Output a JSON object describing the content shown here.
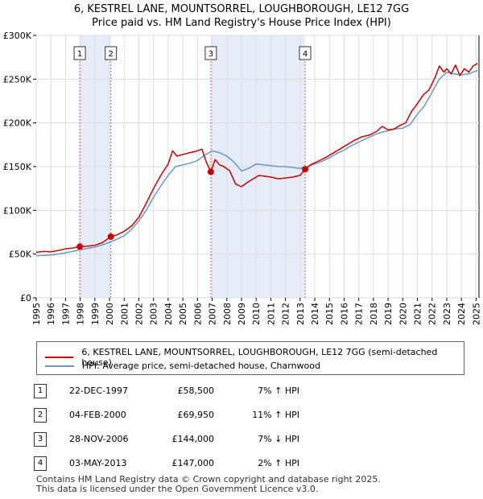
{
  "chart_data": {
    "type": "line",
    "title_lines": [
      "6, KESTREL LANE, MOUNTSORREL, LOUGHBOROUGH, LE12 7GG",
      "Price paid vs. HM Land Registry's House Price Index (HPI)"
    ],
    "xlim": [
      1995.0,
      2025.2
    ],
    "ylim": [
      0,
      300000
    ],
    "x_ticks": [
      "1995",
      "1996",
      "1997",
      "1998",
      "1999",
      "2000",
      "2001",
      "2002",
      "2003",
      "2004",
      "2005",
      "2006",
      "2007",
      "2008",
      "2009",
      "2010",
      "2011",
      "2012",
      "2013",
      "2014",
      "2015",
      "2016",
      "2017",
      "2018",
      "2019",
      "2020",
      "2021",
      "2022",
      "2023",
      "2024",
      "2025"
    ],
    "y_ticks": [
      {
        "value": 0,
        "label": "£0"
      },
      {
        "value": 50000,
        "label": "£50K"
      },
      {
        "value": 100000,
        "label": "£100K"
      },
      {
        "value": 150000,
        "label": "£150K"
      },
      {
        "value": 200000,
        "label": "£200K"
      },
      {
        "value": 250000,
        "label": "£250K"
      },
      {
        "value": 300000,
        "label": "£300K"
      }
    ],
    "series": [
      {
        "name": "6, KESTREL LANE, MOUNTSORREL, LOUGHBOROUGH, LE12 7GG (semi-detached house)",
        "color": "#cc0000",
        "x": [
          1995.0,
          1995.5,
          1996.0,
          1996.5,
          1997.0,
          1997.5,
          1997.97,
          1998.5,
          1999.0,
          1999.5,
          2000.09,
          2000.5,
          2001.0,
          2001.5,
          2002.0,
          2002.5,
          2003.0,
          2003.5,
          2004.0,
          2004.3,
          2004.6,
          2005.0,
          2005.5,
          2006.0,
          2006.3,
          2006.6,
          2006.91,
          2007.2,
          2007.5,
          2007.8,
          2008.2,
          2008.6,
          2009.0,
          2009.4,
          2009.8,
          2010.2,
          2010.6,
          2011.0,
          2011.5,
          2012.0,
          2012.5,
          2013.0,
          2013.34,
          2013.7,
          2014.2,
          2014.7,
          2015.2,
          2015.7,
          2016.2,
          2016.7,
          2017.2,
          2017.7,
          2018.2,
          2018.6,
          2019.0,
          2019.4,
          2019.8,
          2020.2,
          2020.6,
          2021.0,
          2021.4,
          2021.8,
          2022.2,
          2022.5,
          2022.8,
          2023.0,
          2023.3,
          2023.6,
          2023.9,
          2024.2,
          2024.5,
          2024.8,
          2025.1
        ],
        "values": [
          52000,
          53000,
          52500,
          54000,
          56000,
          57000,
          58500,
          59000,
          60000,
          63000,
          69950,
          72000,
          76000,
          82000,
          92000,
          108000,
          125000,
          140000,
          153000,
          168000,
          162000,
          164000,
          166000,
          168000,
          170000,
          155000,
          144000,
          158000,
          152000,
          150000,
          145000,
          130000,
          127000,
          132000,
          136000,
          140000,
          139000,
          138000,
          136000,
          137000,
          138000,
          140000,
          147000,
          152000,
          156000,
          160000,
          165000,
          170000,
          175000,
          180000,
          184000,
          186000,
          190000,
          196000,
          192000,
          193000,
          197000,
          200000,
          213000,
          222000,
          232000,
          238000,
          252000,
          265000,
          258000,
          262000,
          256000,
          266000,
          254000,
          262000,
          258000,
          265000,
          268000
        ]
      },
      {
        "name": "HPI: Average price, semi-detached house, Charnwood",
        "color": "#6699cc",
        "x": [
          1995.0,
          1995.5,
          1996.0,
          1996.5,
          1997.0,
          1997.5,
          1998.0,
          1998.5,
          1999.0,
          1999.5,
          2000.0,
          2000.5,
          2001.0,
          2001.5,
          2002.0,
          2002.5,
          2003.0,
          2003.5,
          2004.0,
          2004.5,
          2005.0,
          2005.5,
          2006.0,
          2006.5,
          2007.0,
          2007.5,
          2008.0,
          2008.5,
          2009.0,
          2009.5,
          2010.0,
          2010.5,
          2011.0,
          2011.5,
          2012.0,
          2012.5,
          2013.0,
          2013.5,
          2014.0,
          2014.5,
          2015.0,
          2015.5,
          2016.0,
          2016.5,
          2017.0,
          2017.5,
          2018.0,
          2018.5,
          2019.0,
          2019.5,
          2020.0,
          2020.5,
          2021.0,
          2021.5,
          2022.0,
          2022.5,
          2023.0,
          2023.5,
          2024.0,
          2024.5,
          2025.1
        ],
        "values": [
          48000,
          48500,
          49000,
          50000,
          51500,
          53000,
          55000,
          56500,
          58000,
          60500,
          63500,
          67000,
          71000,
          78000,
          88000,
          100000,
          115000,
          128000,
          140000,
          150000,
          152000,
          154000,
          157000,
          163000,
          168000,
          166000,
          162000,
          155000,
          145000,
          148000,
          153000,
          152000,
          151000,
          150000,
          150000,
          149000,
          148000,
          150000,
          153000,
          156000,
          160000,
          165000,
          169000,
          174000,
          178000,
          182000,
          186000,
          189000,
          191000,
          193000,
          194000,
          198000,
          210000,
          220000,
          235000,
          250000,
          258000,
          256000,
          255000,
          256000,
          260000
        ]
      }
    ],
    "transactions": [
      {
        "id": "1",
        "date": "22-DEC-1997",
        "x": 1997.97,
        "price": 58500,
        "price_label": "£58,500",
        "hpi_change": "7% ↑ HPI"
      },
      {
        "id": "2",
        "date": "04-FEB-2000",
        "x": 2000.09,
        "price": 69950,
        "price_label": "£69,950",
        "hpi_change": "11% ↑ HPI"
      },
      {
        "id": "3",
        "date": "28-NOV-2006",
        "x": 2006.91,
        "price": 144000,
        "price_label": "£144,000",
        "hpi_change": "7% ↓ HPI"
      },
      {
        "id": "4",
        "date": "03-MAY-2013",
        "x": 2013.34,
        "price": 147000,
        "price_label": "£147,000",
        "hpi_change": "2% ↑ HPI"
      }
    ],
    "shaded_ranges": [
      [
        1997.97,
        2000.09
      ],
      [
        2006.91,
        2013.34
      ]
    ],
    "grid": true,
    "shade_color": "#e6ecf8",
    "grid_color": "#dddddd",
    "marker_color": "#cc0000",
    "vline_color": "#dd5555"
  },
  "legend": {
    "property_label": "6, KESTREL LANE, MOUNTSORREL, LOUGHBOROUGH, LE12 7GG (semi-detached house)",
    "hpi_label": "HPI: Average price, semi-detached house, Charnwood"
  },
  "footer": {
    "line1": "Contains HM Land Registry data © Crown copyright and database right 2025.",
    "line2": "This data is licensed under the Open Government Licence v3.0."
  }
}
